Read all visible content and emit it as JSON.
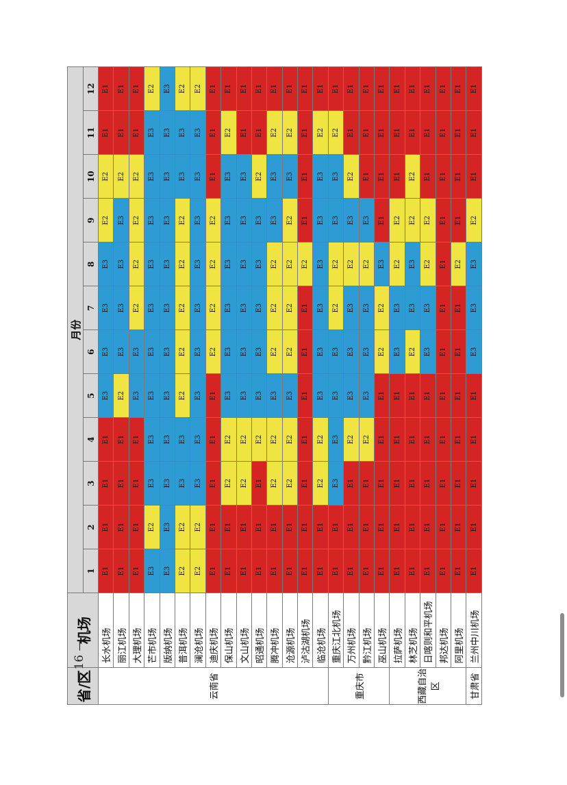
{
  "table": {
    "header_province": "省/区",
    "header_airport": "机场",
    "header_month": "月份",
    "months": [
      "1",
      "2",
      "3",
      "4",
      "5",
      "6",
      "7",
      "8",
      "9",
      "10",
      "11",
      "12"
    ],
    "groups": [
      {
        "province": "云南省",
        "airports": [
          {
            "name": "长水机场",
            "levels": [
              "E1",
              "E1",
              "E1",
              "E1",
              "E3",
              "E3",
              "E3",
              "E3",
              "E2",
              "E2",
              "E1",
              "E1"
            ]
          },
          {
            "name": "丽江机场",
            "levels": [
              "E1",
              "E1",
              "E1",
              "E1",
              "E2",
              "E3",
              "E3",
              "E3",
              "E3",
              "E2",
              "E1",
              "E1"
            ]
          },
          {
            "name": "大理机场",
            "levels": [
              "E1",
              "E1",
              "E1",
              "E1",
              "E3",
              "E3",
              "E2",
              "E2",
              "E2",
              "E2",
              "E1",
              "E1"
            ]
          },
          {
            "name": "芒市机场",
            "levels": [
              "E3",
              "E2",
              "E3",
              "E3",
              "E3",
              "E3",
              "E3",
              "E3",
              "E3",
              "E3",
              "E3",
              "E2"
            ]
          },
          {
            "name": "版纳机场",
            "levels": [
              "E3",
              "E3",
              "E3",
              "E3",
              "E3",
              "E3",
              "E3",
              "E3",
              "E3",
              "E3",
              "E3",
              "E3"
            ]
          },
          {
            "name": "普洱机场",
            "levels": [
              "E2",
              "E2",
              "E3",
              "E3",
              "E2",
              "E2",
              "E2",
              "E2",
              "E2",
              "E3",
              "E3",
              "E2"
            ]
          },
          {
            "name": "澜沧机场",
            "levels": [
              "E2",
              "E2",
              "E3",
              "E3",
              "E3",
              "E3",
              "E3",
              "E3",
              "E3",
              "E3",
              "E3",
              "E2"
            ]
          },
          {
            "name": "迪庆机场",
            "levels": [
              "E1",
              "E1",
              "E1",
              "E1",
              "E1",
              "E2",
              "E2",
              "E2",
              "E2",
              "E1",
              "E1",
              "E1"
            ]
          },
          {
            "name": "保山机场",
            "levels": [
              "E1",
              "E1",
              "E2",
              "E2",
              "E3",
              "E3",
              "E3",
              "E3",
              "E3",
              "E3",
              "E2",
              "E1"
            ]
          },
          {
            "name": "文山机场",
            "levels": [
              "E1",
              "E1",
              "E2",
              "E2",
              "E3",
              "E3",
              "E3",
              "E3",
              "E3",
              "E3",
              "E1",
              "E1"
            ]
          },
          {
            "name": "昭通机场",
            "levels": [
              "E1",
              "E1",
              "E1",
              "E2",
              "E3",
              "E3",
              "E3",
              "E3",
              "E3",
              "E2",
              "E1",
              "E1"
            ]
          },
          {
            "name": "腾冲机场",
            "levels": [
              "E1",
              "E1",
              "E2",
              "E2",
              "E3",
              "E2",
              "E2",
              "E2",
              "E3",
              "E3",
              "E2",
              "E1"
            ]
          },
          {
            "name": "沧源机场",
            "levels": [
              "E1",
              "E1",
              "E2",
              "E2",
              "E3",
              "E2",
              "E2",
              "E2",
              "E2",
              "E3",
              "E2",
              "E1"
            ]
          },
          {
            "name": "泸沽湖机场",
            "levels": [
              "E1",
              "E1",
              "E1",
              "E1",
              "E1",
              "E1",
              "E1",
              "E2",
              "E1",
              "E1",
              "E1",
              "E1"
            ]
          },
          {
            "name": "临沧机场",
            "levels": [
              "E1",
              "E1",
              "E2",
              "E2",
              "E3",
              "E3",
              "E3",
              "E3",
              "E3",
              "E3",
              "E2",
              "E1"
            ]
          }
        ]
      },
      {
        "province": "重庆市",
        "airports": [
          {
            "name": "重庆江北机场",
            "levels": [
              "E1",
              "E1",
              "E3",
              "E3",
              "E3",
              "E3",
              "E2",
              "E2",
              "E3",
              "E3",
              "E2",
              "E1"
            ]
          },
          {
            "name": "万州机场",
            "levels": [
              "E1",
              "E1",
              "E1",
              "E2",
              "E3",
              "E3",
              "E3",
              "E2",
              "E3",
              "E2",
              "E1",
              "E1"
            ]
          },
          {
            "name": "黔江机场",
            "levels": [
              "E1",
              "E1",
              "E1",
              "E2",
              "E3",
              "E3",
              "E3",
              "E2",
              "E3",
              "E1",
              "E1",
              "E1"
            ]
          },
          {
            "name": "巫山机场",
            "levels": [
              "E1",
              "E1",
              "E1",
              "E1",
              "E1",
              "E2",
              "E2",
              "E3",
              "E1",
              "E1",
              "E1",
              "E1"
            ]
          }
        ]
      },
      {
        "province": "西藏自治区",
        "airports": [
          {
            "name": "拉萨机场",
            "levels": [
              "E1",
              "E1",
              "E1",
              "E1",
              "E1",
              "E3",
              "E3",
              "E2",
              "E2",
              "E1",
              "E1",
              "E1"
            ]
          },
          {
            "name": "林芝机场",
            "levels": [
              "E1",
              "E1",
              "E1",
              "E1",
              "E1",
              "E2",
              "E3",
              "E3",
              "E2",
              "E2",
              "E1",
              "E1"
            ]
          },
          {
            "name": "日喀则和平机场",
            "levels": [
              "E1",
              "E1",
              "E1",
              "E1",
              "E1",
              "E3",
              "E3",
              "E2",
              "E2",
              "E1",
              "E1",
              "E1"
            ]
          },
          {
            "name": "邦达机场",
            "levels": [
              "E1",
              "E1",
              "E1",
              "E1",
              "E1",
              "E1",
              "E1",
              "E1",
              "E1",
              "E1",
              "E1",
              "E1"
            ]
          },
          {
            "name": "阿里机场",
            "levels": [
              "E1",
              "E1",
              "E1",
              "E1",
              "E1",
              "E1",
              "E1",
              "E2",
              "E1",
              "E1",
              "E1",
              "E1"
            ]
          }
        ]
      },
      {
        "province": "甘肃省",
        "airports": [
          {
            "name": "兰州中川机场",
            "levels": [
              "E1",
              "E1",
              "E1",
              "E1",
              "E1",
              "E3",
              "E3",
              "E3",
              "E2",
              "E1",
              "E1",
              "E1"
            ]
          }
        ]
      }
    ]
  },
  "page_number": "— 16 —",
  "colors": {
    "E1": "#d42424",
    "E2": "#f0e442",
    "E3": "#2f9bd4"
  }
}
